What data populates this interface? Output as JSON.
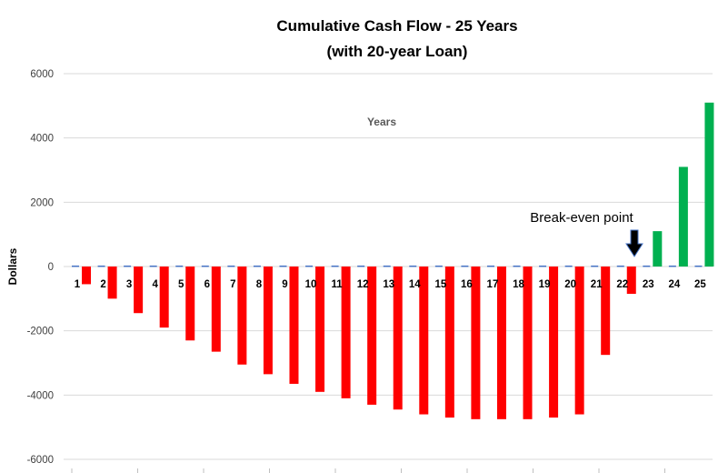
{
  "chart_data": {
    "type": "bar",
    "title": "Cumulative Cash Flow - 25 Years",
    "subtitle": "(with 20-year Loan)",
    "ylabel": "Dollars",
    "inner_label": "Years",
    "ylim": [
      -6000,
      6000
    ],
    "yticks": [
      6000,
      4000,
      2000,
      0,
      -2000,
      -4000,
      -6000
    ],
    "ytick_labels": [
      "6000",
      "4000",
      "2000",
      "0",
      "-2000",
      "-4000",
      "-6000"
    ],
    "grid": true,
    "legend": "none",
    "categories": [
      "1",
      "2",
      "3",
      "4",
      "5",
      "6",
      "7",
      "8",
      "9",
      "10",
      "11",
      "12",
      "13",
      "14",
      "15",
      "16",
      "17",
      "18",
      "19",
      "20",
      "21",
      "22",
      "23",
      "24",
      "25"
    ],
    "series": [
      {
        "color_negative": "#ff0000",
        "color_positive": "#00b050",
        "values": [
          -550,
          -1000,
          -1450,
          -1900,
          -2300,
          -2650,
          -3050,
          -3350,
          -3650,
          -3900,
          -4100,
          -4300,
          -4450,
          -4600,
          -4700,
          -4750,
          -4750,
          -4750,
          -4700,
          -4600,
          -2750,
          -850,
          1100,
          3100,
          5100
        ]
      },
      {
        "color": "#4472c4",
        "values": [
          30,
          30,
          30,
          30,
          30,
          30,
          30,
          30,
          30,
          30,
          30,
          30,
          30,
          30,
          30,
          30,
          30,
          30,
          30,
          30,
          30,
          30,
          30,
          30,
          30
        ]
      }
    ],
    "annotation": {
      "text": "Break-even point",
      "arrow": "down",
      "target_category": "22"
    }
  }
}
